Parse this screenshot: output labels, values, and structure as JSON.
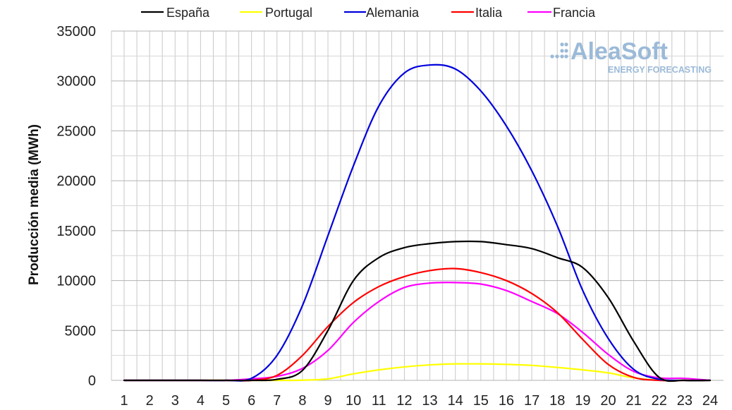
{
  "logo": {
    "name": "AleaSoft",
    "tagline": "ENERGY FORECASTING",
    "color": "#9bbad8"
  },
  "chart_data": {
    "type": "line",
    "title": "",
    "xlabel": "",
    "ylabel": "Producción media (MWh)",
    "categories": [
      "1",
      "2",
      "3",
      "4",
      "5",
      "6",
      "7",
      "8",
      "9",
      "10",
      "11",
      "12",
      "13",
      "14",
      "15",
      "16",
      "17",
      "18",
      "19",
      "20",
      "21",
      "22",
      "23",
      "24"
    ],
    "xlim": [
      1,
      24
    ],
    "ylim": [
      0,
      35000
    ],
    "yticks": [
      "0",
      "5000",
      "10000",
      "15000",
      "20000",
      "25000",
      "30000",
      "35000"
    ],
    "grid": true,
    "legend_position": "top",
    "series": [
      {
        "name": "España",
        "color": "#000000",
        "values": [
          0,
          0,
          0,
          0,
          0,
          0,
          100,
          1000,
          5000,
          10000,
          12300,
          13300,
          13700,
          13900,
          13900,
          13600,
          13200,
          12300,
          11300,
          8300,
          3900,
          300,
          0,
          0
        ]
      },
      {
        "name": "Portugal",
        "color": "#ffff00",
        "values": [
          0,
          0,
          0,
          0,
          0,
          0,
          0,
          20,
          150,
          650,
          1050,
          1350,
          1550,
          1650,
          1650,
          1600,
          1500,
          1300,
          1050,
          750,
          250,
          20,
          0,
          0
        ]
      },
      {
        "name": "Alemania",
        "color": "#0000dd",
        "values": [
          0,
          0,
          0,
          0,
          0,
          200,
          2500,
          7500,
          14500,
          21500,
          27500,
          30800,
          31600,
          31200,
          29000,
          25500,
          21000,
          15500,
          9000,
          4200,
          1100,
          100,
          0,
          0
        ]
      },
      {
        "name": "Italia",
        "color": "#ff0000",
        "values": [
          0,
          0,
          0,
          0,
          0,
          0,
          500,
          2500,
          5400,
          7800,
          9400,
          10400,
          11000,
          11200,
          10800,
          10000,
          8700,
          6800,
          4100,
          1600,
          300,
          0,
          0,
          0
        ]
      },
      {
        "name": "Francia",
        "color": "#ff00ff",
        "values": [
          0,
          0,
          0,
          0,
          0,
          150,
          400,
          1200,
          3000,
          5800,
          7900,
          9300,
          9750,
          9800,
          9650,
          9000,
          7900,
          6700,
          4800,
          2600,
          900,
          250,
          200,
          0
        ]
      }
    ]
  }
}
